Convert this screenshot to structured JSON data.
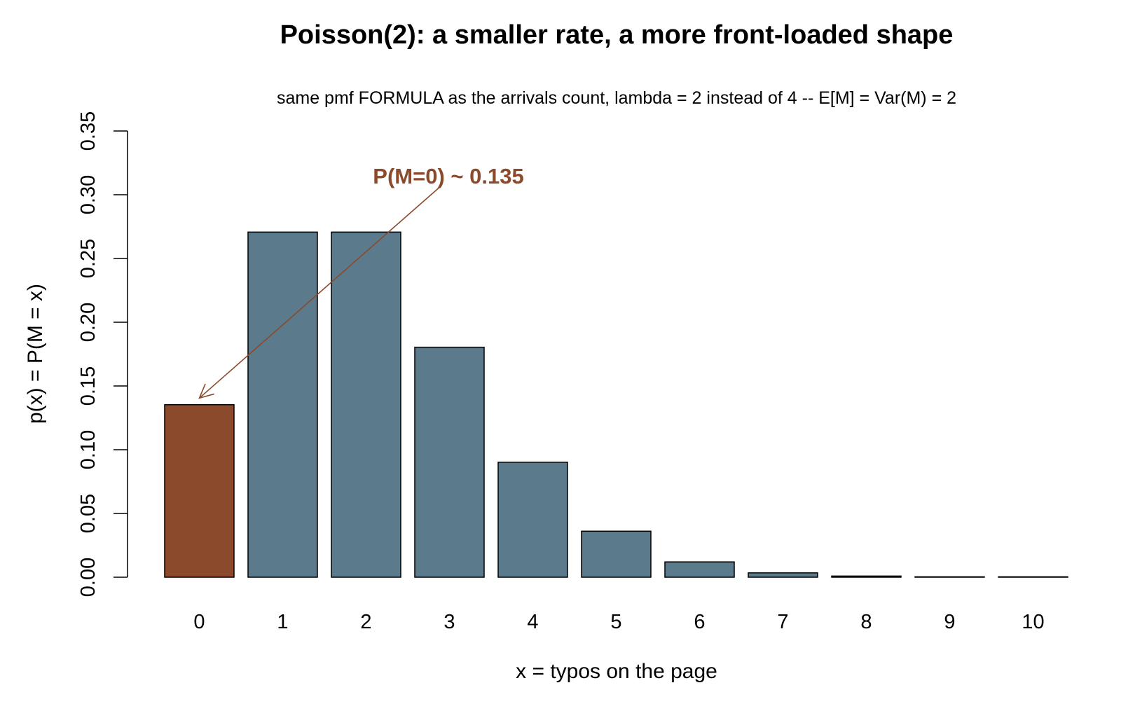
{
  "chart_data": {
    "type": "bar",
    "title": "Poisson(2): a smaller rate, a more front-loaded shape",
    "subtitle": "same pmf FORMULA as the arrivals count, lambda = 2 instead of 4 -- E[M] = Var(M) = 2",
    "xlabel": "x = typos on the page",
    "ylabel": "p(x) = P(M = x)",
    "categories": [
      "0",
      "1",
      "2",
      "3",
      "4",
      "5",
      "6",
      "7",
      "8",
      "9",
      "10"
    ],
    "values": [
      0.1353,
      0.2707,
      0.2707,
      0.1804,
      0.0902,
      0.0361,
      0.012,
      0.0034,
      0.0009,
      0.0002,
      4e-05
    ],
    "ylim": [
      0,
      0.35
    ],
    "yticks": [
      0.0,
      0.05,
      0.1,
      0.15,
      0.2,
      0.25,
      0.3,
      0.35
    ],
    "ytick_labels": [
      "0.00",
      "0.05",
      "0.10",
      "0.15",
      "0.20",
      "0.25",
      "0.30",
      "0.35"
    ],
    "grid": false,
    "colors": {
      "highlight": "#8B4A2B",
      "bar": "#5B7A8C",
      "annotation": "#8B4A2B",
      "edge": "#000000"
    },
    "highlight_index": 0,
    "annotation": {
      "text": "P(M=0) ~ 0.135",
      "target_index": 0,
      "target_value": 0.135
    }
  }
}
